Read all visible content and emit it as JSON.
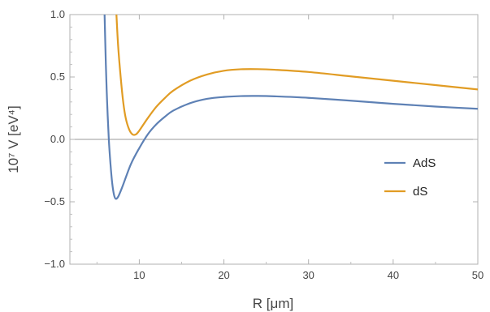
{
  "chart_data": {
    "type": "line",
    "title": "",
    "xlabel": "R [μm]",
    "ylabel": "10⁷ V [eV⁴]",
    "xlim": [
      1.8,
      50
    ],
    "ylim": [
      -1.0,
      1.0
    ],
    "x_ticks": [
      10,
      20,
      30,
      40,
      50
    ],
    "y_ticks": [
      -1.0,
      -0.5,
      0.0,
      0.5,
      1.0
    ],
    "y_tick_labels": [
      "−1.0",
      "−0.5",
      "0.0",
      "0.5",
      "1.0"
    ],
    "grid": false,
    "zero_line": true,
    "legend_position": "right-center",
    "series": [
      {
        "name": "AdS",
        "color": "#5e81b5",
        "points": [
          [
            5.9,
            1.0
          ],
          [
            6.05,
            0.6
          ],
          [
            6.2,
            0.3
          ],
          [
            6.4,
            0.0
          ],
          [
            6.6,
            -0.2
          ],
          [
            6.8,
            -0.35
          ],
          [
            7.0,
            -0.44
          ],
          [
            7.2,
            -0.475
          ],
          [
            7.5,
            -0.46
          ],
          [
            8.0,
            -0.38
          ],
          [
            9.0,
            -0.2
          ],
          [
            10.0,
            -0.07
          ],
          [
            11.0,
            0.04
          ],
          [
            12.0,
            0.12
          ],
          [
            13.0,
            0.18
          ],
          [
            14.0,
            0.23
          ],
          [
            16.0,
            0.29
          ],
          [
            18.0,
            0.325
          ],
          [
            20.0,
            0.34
          ],
          [
            22.0,
            0.347
          ],
          [
            24.0,
            0.348
          ],
          [
            26.0,
            0.345
          ],
          [
            30.0,
            0.333
          ],
          [
            35.0,
            0.31
          ],
          [
            40.0,
            0.285
          ],
          [
            45.0,
            0.263
          ],
          [
            50.0,
            0.245
          ]
        ]
      },
      {
        "name": "dS",
        "color": "#e19c24",
        "points": [
          [
            7.3,
            1.0
          ],
          [
            7.5,
            0.75
          ],
          [
            7.8,
            0.5
          ],
          [
            8.1,
            0.3
          ],
          [
            8.4,
            0.17
          ],
          [
            8.8,
            0.08
          ],
          [
            9.2,
            0.04
          ],
          [
            9.6,
            0.04
          ],
          [
            10.0,
            0.07
          ],
          [
            11.0,
            0.17
          ],
          [
            12.0,
            0.26
          ],
          [
            13.0,
            0.33
          ],
          [
            14.0,
            0.39
          ],
          [
            16.0,
            0.47
          ],
          [
            18.0,
            0.52
          ],
          [
            20.0,
            0.55
          ],
          [
            22.0,
            0.562
          ],
          [
            24.0,
            0.563
          ],
          [
            26.0,
            0.558
          ],
          [
            30.0,
            0.54
          ],
          [
            35.0,
            0.505
          ],
          [
            40.0,
            0.47
          ],
          [
            45.0,
            0.435
          ],
          [
            50.0,
            0.4
          ]
        ]
      }
    ]
  }
}
